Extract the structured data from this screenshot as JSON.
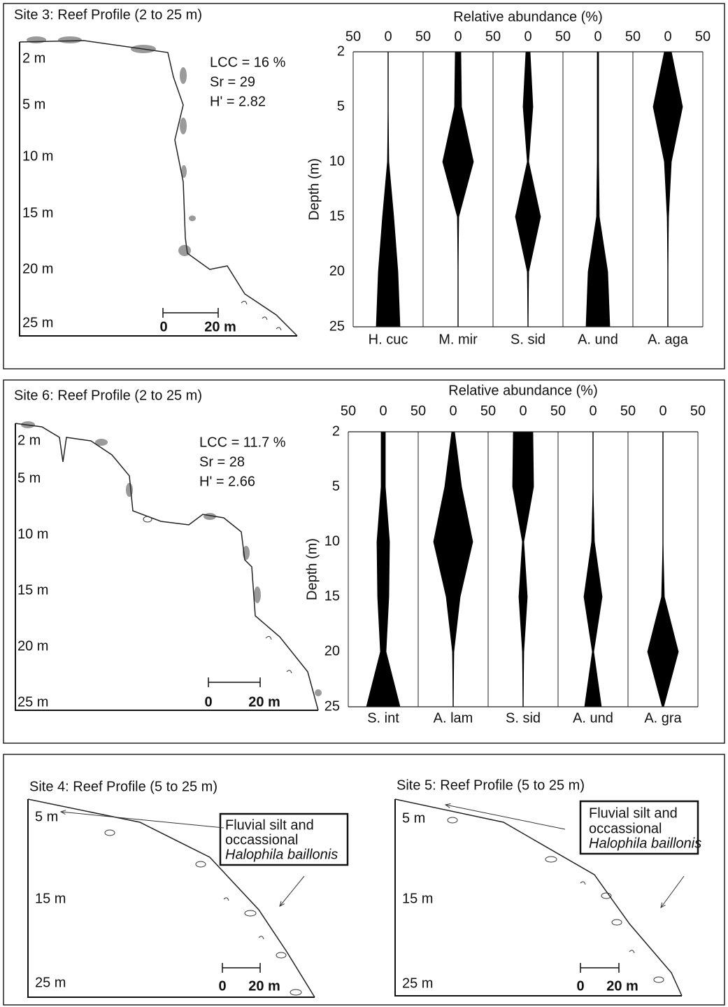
{
  "chart_data": [
    {
      "type": "kite",
      "title": "Relative abundance (%)",
      "y_label": "Depth (m)",
      "categories": [
        2,
        5,
        10,
        15,
        20,
        25
      ],
      "xlim": [
        -50,
        50
      ],
      "xticks": [
        {
          "value": -50,
          "label": "50"
        },
        0,
        50
      ],
      "color": "#000000",
      "series": [
        {
          "name": "H. cuc",
          "values": [
            0,
            0,
            1,
            8,
            14,
            17
          ]
        },
        {
          "name": "M. mir",
          "values": [
            4,
            5,
            22,
            1,
            0,
            0
          ]
        },
        {
          "name": "S. sid",
          "values": [
            3,
            7,
            1,
            18,
            1,
            0
          ]
        },
        {
          "name": "A. und",
          "values": [
            1,
            1,
            1,
            2,
            14,
            17
          ]
        },
        {
          "name": "A. aga",
          "values": [
            5,
            21,
            5,
            1,
            0,
            0
          ]
        }
      ]
    },
    {
      "type": "kite",
      "title": "Relative abundance (%)",
      "y_label": "Depth (m)",
      "categories": [
        2,
        5,
        10,
        15,
        20,
        25
      ],
      "xlim": [
        -50,
        50
      ],
      "xticks": [
        {
          "value": -50,
          "label": "50"
        },
        0,
        50
      ],
      "color": "#000000",
      "series": [
        {
          "name": "S. int",
          "values": [
            3,
            3,
            9,
            8,
            4,
            24
          ]
        },
        {
          "name": "A. lam",
          "values": [
            2,
            12,
            28,
            10,
            1,
            0
          ]
        },
        {
          "name": "S. sid",
          "values": [
            14,
            15,
            1,
            6,
            1,
            0
          ]
        },
        {
          "name": "A. und",
          "values": [
            0,
            0,
            2,
            13,
            1,
            12
          ]
        },
        {
          "name": "A. gra",
          "values": [
            0,
            0,
            0,
            2,
            22,
            1
          ]
        }
      ]
    }
  ],
  "profiles": [
    {
      "title": "Site 3: Reef Profile (2 to 25 m)",
      "depth_labels": [
        "2 m",
        "5 m",
        "10 m",
        "15 m",
        "20 m",
        "25 m"
      ],
      "stats": [
        "LCC = 16 %",
        "Sr = 29",
        "H' = 2.82"
      ],
      "scale": [
        "0",
        "20 m"
      ]
    },
    {
      "title": "Site 6: Reef Profile (2 to 25 m)",
      "depth_labels": [
        "2 m",
        "5 m",
        "10 m",
        "15 m",
        "20 m",
        "25 m"
      ],
      "stats": [
        "LCC = 11.7 %",
        "Sr = 28",
        "H' = 2.66"
      ],
      "scale": [
        "0",
        "20 m"
      ]
    },
    {
      "title": "Site 4: Reef Profile (5 to 25 m)",
      "depth_labels": [
        "5 m",
        "15 m",
        "25 m"
      ],
      "note": [
        "Fluvial silt and",
        "occassional",
        "Halophila baillonis"
      ],
      "scale": [
        "0",
        "20 m"
      ]
    },
    {
      "title": "Site 5: Reef Profile (5 to 25 m)",
      "depth_labels": [
        "5 m",
        "15 m",
        "25 m"
      ],
      "note": [
        "Fluvial silt and",
        "occassional",
        "Halophila baillonis"
      ],
      "scale": [
        "0",
        "20 m"
      ]
    }
  ]
}
